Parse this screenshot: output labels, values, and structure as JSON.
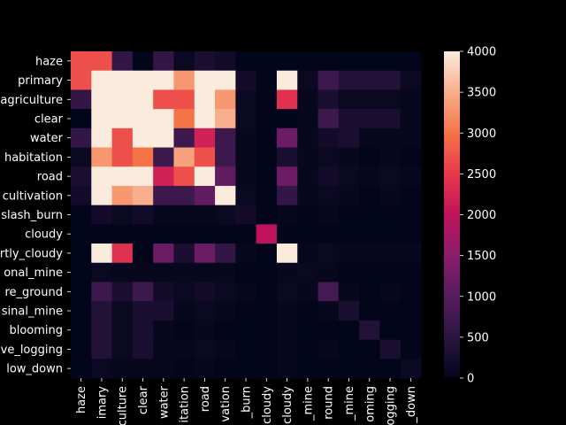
{
  "chart_data": {
    "type": "heatmap",
    "title": "",
    "xlabel": "",
    "ylabel": "",
    "y_labels": [
      "haze",
      "primary",
      "agriculture",
      "clear",
      "water",
      "habitation",
      "road",
      "cultivation",
      "slash_burn",
      "cloudy",
      "partly_cloudy",
      "conventional_mine",
      "bare_ground",
      "artisinal_mine",
      "blooming",
      "selective_logging",
      "blow_down"
    ],
    "x_labels": [
      "haze",
      "primary",
      "agriculture",
      "clear",
      "water",
      "habitation",
      "road",
      "cultivation",
      "slash_burn",
      "cloudy",
      "partly_cloudy",
      "conventional_mine",
      "bare_ground",
      "artisinal_mine",
      "blooming",
      "selective_logging",
      "blow_down"
    ],
    "x_labels_shown": [
      "haze",
      "imary",
      "culture",
      "clear",
      "water",
      "itation",
      "road",
      "vation",
      "_burn",
      "cloudy",
      "cloudy",
      "_mine",
      "round",
      "_mine",
      "oming",
      "ogging",
      "_down"
    ],
    "y_labels_shown": [
      "haze",
      "primary",
      "agriculture",
      "clear",
      "water",
      "habitation",
      "road",
      "cultivation",
      "slash_burn",
      "cloudy",
      "rtly_cloudy",
      "onal_mine",
      "re_ground",
      "sinal_mine",
      "blooming",
      "ve_logging",
      "low_down"
    ],
    "values": [
      [
        2700,
        2700,
        600,
        0,
        600,
        100,
        300,
        200,
        0,
        0,
        0,
        0,
        0,
        0,
        0,
        0,
        0
      ],
      [
        2700,
        4000,
        4000,
        4000,
        4000,
        3300,
        4000,
        4000,
        200,
        0,
        4000,
        100,
        700,
        400,
        400,
        400,
        100
      ],
      [
        600,
        4000,
        4000,
        4000,
        2700,
        2700,
        4000,
        3300,
        100,
        0,
        2400,
        50,
        300,
        100,
        100,
        100,
        50
      ],
      [
        0,
        4000,
        4000,
        4000,
        4000,
        3000,
        4000,
        3500,
        100,
        0,
        0,
        50,
        700,
        300,
        300,
        300,
        50
      ],
      [
        600,
        4000,
        2700,
        4000,
        4000,
        700,
        2200,
        700,
        50,
        0,
        1200,
        50,
        200,
        300,
        50,
        50,
        50
      ],
      [
        100,
        3300,
        2700,
        3000,
        700,
        3400,
        2700,
        700,
        50,
        0,
        300,
        50,
        100,
        50,
        0,
        50,
        0
      ],
      [
        300,
        4000,
        4000,
        4000,
        2200,
        2700,
        4000,
        1100,
        50,
        0,
        1200,
        50,
        200,
        100,
        50,
        100,
        50
      ],
      [
        200,
        4000,
        3300,
        3500,
        700,
        700,
        1100,
        4000,
        100,
        0,
        600,
        50,
        100,
        50,
        0,
        50,
        0
      ],
      [
        0,
        200,
        100,
        200,
        50,
        50,
        50,
        100,
        200,
        0,
        50,
        0,
        50,
        0,
        0,
        0,
        0
      ],
      [
        0,
        0,
        0,
        0,
        0,
        0,
        0,
        0,
        0,
        2000,
        0,
        0,
        0,
        0,
        0,
        0,
        0
      ],
      [
        0,
        4000,
        2400,
        0,
        1200,
        300,
        1200,
        600,
        50,
        0,
        4000,
        50,
        100,
        50,
        50,
        50,
        50
      ],
      [
        0,
        100,
        50,
        50,
        50,
        50,
        50,
        50,
        0,
        0,
        50,
        100,
        50,
        0,
        0,
        0,
        0
      ],
      [
        0,
        700,
        300,
        700,
        200,
        100,
        200,
        100,
        50,
        0,
        100,
        50,
        800,
        50,
        0,
        50,
        0
      ],
      [
        0,
        400,
        100,
        300,
        300,
        50,
        100,
        50,
        0,
        0,
        50,
        0,
        50,
        300,
        0,
        0,
        0
      ],
      [
        0,
        400,
        100,
        300,
        50,
        0,
        50,
        0,
        0,
        0,
        50,
        0,
        0,
        0,
        400,
        0,
        0
      ],
      [
        0,
        400,
        100,
        300,
        50,
        50,
        100,
        50,
        0,
        0,
        50,
        0,
        50,
        0,
        0,
        300,
        0
      ],
      [
        0,
        100,
        50,
        50,
        50,
        0,
        50,
        0,
        0,
        0,
        50,
        0,
        0,
        0,
        0,
        0,
        100
      ]
    ],
    "vmin": 0,
    "vmax": 4000,
    "colorbar_ticks": [
      0,
      500,
      1000,
      1500,
      2000,
      2500,
      3000,
      3500,
      4000
    ],
    "colormap": "rocket",
    "grid": false,
    "legend": "colorbar-right"
  }
}
